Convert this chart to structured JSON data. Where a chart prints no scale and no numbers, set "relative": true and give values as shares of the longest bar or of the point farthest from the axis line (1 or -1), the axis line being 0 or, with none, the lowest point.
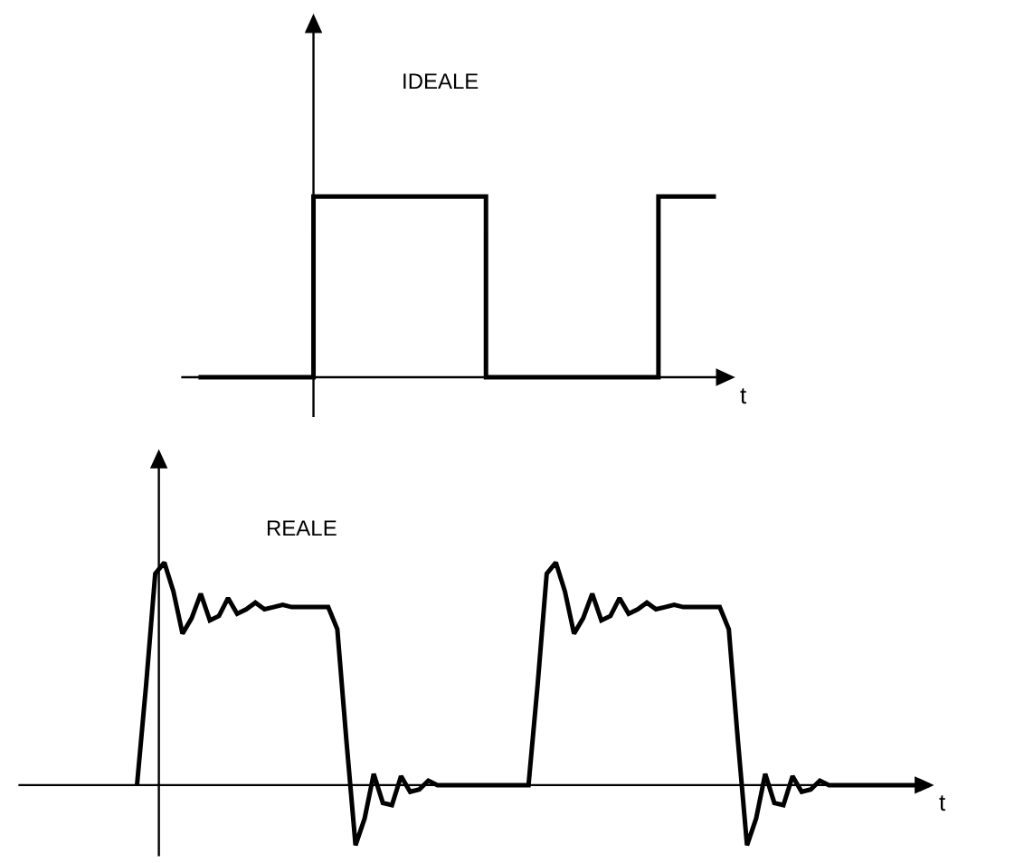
{
  "chart_data": [
    {
      "type": "step",
      "title": "IDEALE",
      "xlabel": "t",
      "relative": true,
      "categories": [
        null,
        null,
        null,
        null,
        null,
        null,
        null,
        null,
        null,
        null
      ],
      "series": [
        {
          "color": "#000000",
          "values": [
            0,
            0,
            1,
            1,
            1,
            0,
            0,
            0,
            1,
            1
          ]
        }
      ]
    },
    {
      "type": "line",
      "title": "REALE",
      "xlabel": "t",
      "relative": true,
      "categories": [
        null,
        null,
        null,
        null,
        null,
        null,
        null,
        null,
        null,
        null,
        null,
        null,
        null,
        null,
        null,
        null,
        null,
        null,
        null,
        null,
        null,
        null,
        null,
        null,
        null,
        null,
        null,
        null,
        null,
        null,
        null,
        null,
        null,
        null,
        null,
        null,
        null,
        null,
        null,
        null,
        null,
        null,
        null,
        null,
        null,
        null,
        null,
        null,
        null,
        null,
        null,
        null,
        null,
        null,
        null,
        null,
        null,
        null,
        null,
        null,
        null,
        null,
        null,
        null,
        null,
        null,
        null,
        null,
        null,
        null,
        null,
        null,
        null,
        null,
        null,
        null,
        null,
        null,
        null,
        null,
        null,
        null,
        null,
        null,
        null,
        null,
        null,
        null
      ],
      "series": [
        {
          "color": "#000000",
          "values": [
            0,
            0.45,
            0.95,
            1,
            0.87,
            0.68,
            0.75,
            0.86,
            0.74,
            0.76,
            0.84,
            0.77,
            0.79,
            0.82,
            0.79,
            0.8,
            0.81,
            0.8,
            0.8,
            0.8,
            0.8,
            0.8,
            0.7,
            0.2,
            -0.27,
            -0.15,
            0.05,
            -0.08,
            -0.09,
            0.04,
            -0.03,
            -0.02,
            0.02,
            0,
            0,
            0,
            0,
            0,
            0,
            0,
            0,
            0,
            0,
            0,
            0.45,
            0.95,
            1,
            0.87,
            0.68,
            0.75,
            0.86,
            0.74,
            0.76,
            0.84,
            0.77,
            0.79,
            0.82,
            0.79,
            0.8,
            0.81,
            0.8,
            0.8,
            0.8,
            0.8,
            0.8,
            0.7,
            0.2,
            -0.27,
            -0.15,
            0.05,
            -0.08,
            -0.09,
            0.04,
            -0.03,
            -0.02,
            0.02,
            0,
            0,
            0,
            0,
            0,
            0,
            0,
            0,
            0,
            0,
            0,
            0
          ]
        }
      ]
    }
  ]
}
